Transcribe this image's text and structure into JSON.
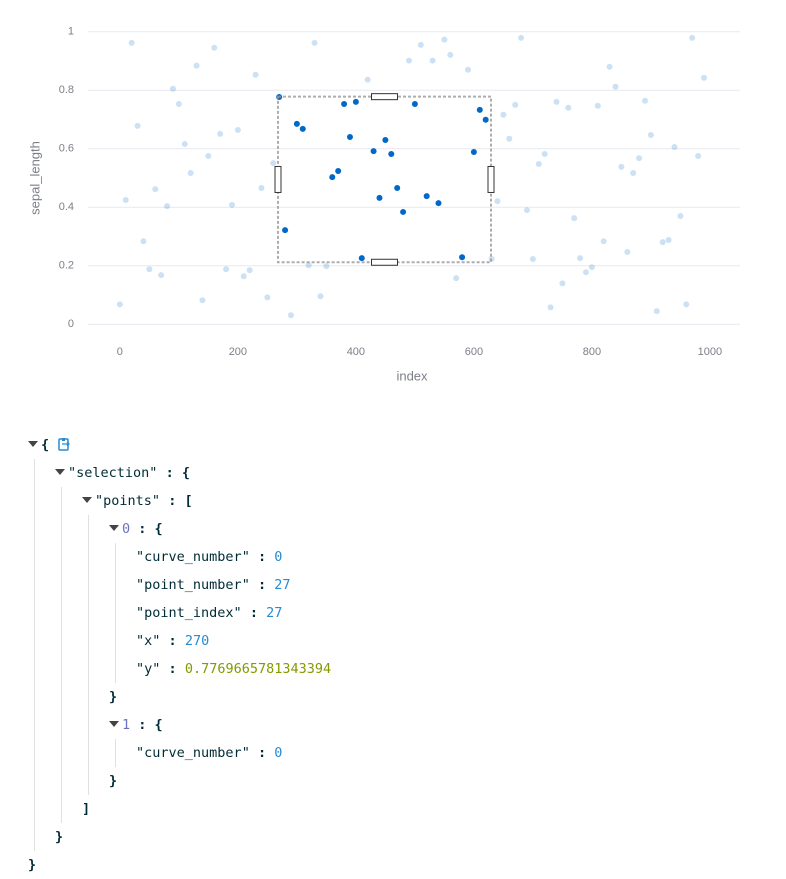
{
  "chart_data": {
    "type": "scatter",
    "x_label": "index",
    "y_label": "sepal_length",
    "x": [
      0,
      10,
      20,
      30,
      40,
      50,
      60,
      70,
      80,
      90,
      100,
      110,
      120,
      130,
      140,
      150,
      160,
      170,
      180,
      190,
      200,
      210,
      220,
      230,
      240,
      250,
      260,
      270,
      280,
      290,
      300,
      310,
      320,
      330,
      340,
      350,
      360,
      370,
      380,
      390,
      400,
      410,
      420,
      430,
      440,
      450,
      460,
      470,
      480,
      490,
      500,
      510,
      520,
      530,
      540,
      550,
      560,
      570,
      580,
      590,
      600,
      610,
      620,
      630,
      640,
      650,
      660,
      670,
      680,
      690,
      700,
      710,
      720,
      730,
      740,
      750,
      760,
      770,
      780,
      790,
      800,
      810,
      820,
      830,
      840,
      850,
      860,
      870,
      880,
      890,
      900,
      910,
      920,
      930,
      940,
      950,
      960,
      970,
      980,
      990
    ],
    "values": [
      0.068,
      0.425,
      0.962,
      0.678,
      0.284,
      0.188,
      0.462,
      0.168,
      0.404,
      0.805,
      0.753,
      0.616,
      0.517,
      0.884,
      0.082,
      0.575,
      0.945,
      0.651,
      0.188,
      0.408,
      0.664,
      0.164,
      0.185,
      0.853,
      0.466,
      0.092,
      0.551,
      0.7769665781343394,
      0.322,
      0.031,
      0.685,
      0.668,
      0.202,
      0.962,
      0.096,
      0.199,
      0.503,
      0.524,
      0.753,
      0.64,
      0.76,
      0.226,
      0.836,
      0.592,
      0.432,
      0.63,
      0.582,
      0.466,
      0.384,
      0.901,
      0.753,
      0.955,
      0.438,
      0.901,
      0.414,
      0.973,
      0.921,
      0.158,
      0.229,
      0.87,
      0.589,
      0.733,
      0.699,
      0.223,
      0.421,
      0.716,
      0.634,
      0.75,
      0.979,
      0.39,
      0.223,
      0.548,
      0.582,
      0.058,
      0.76,
      0.14,
      0.74,
      0.363,
      0.226,
      0.178,
      0.195,
      0.747,
      0.284,
      0.88,
      0.812,
      0.538,
      0.247,
      0.517,
      0.568,
      0.764,
      0.647,
      0.045,
      0.281,
      0.288,
      0.606,
      0.37,
      0.068,
      0.979,
      0.575,
      0.842
    ],
    "color": "#0068c9",
    "unselected_opacity": 0.2,
    "selection_box": {
      "xlim": [
        268,
        629
      ],
      "ylim": [
        0.212,
        0.778
      ]
    },
    "xlim": [
      -54,
      1051
    ],
    "ylim": [
      -0.04,
      1.04
    ],
    "xticks": [
      0,
      200,
      400,
      600,
      800,
      1000
    ],
    "yticks": [
      0,
      0.2,
      0.4,
      0.6,
      0.8,
      1
    ],
    "grid": true
  },
  "json_view": {
    "selection": {
      "points": [
        {
          "curve_number": 0,
          "point_number": 27,
          "point_index": 27,
          "x": 270,
          "y": 0.7769665781343394
        },
        {
          "curve_number": 0
        }
      ]
    }
  }
}
